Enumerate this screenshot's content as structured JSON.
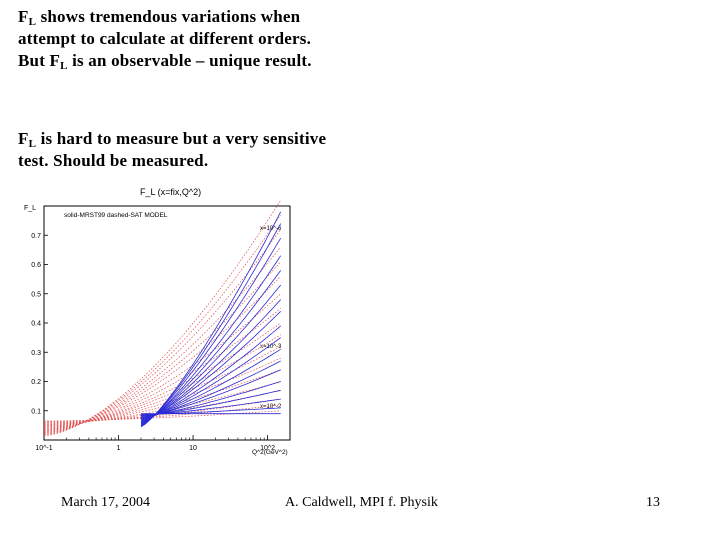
{
  "slide": {
    "para1": {
      "a_main": "F",
      "a_sub": "L",
      "a_rest": " shows tremendous variations when attempt to calculate at different orders.  But F",
      "b_sub": "L",
      "b_rest": " is an observable – unique result."
    },
    "para2": {
      "main": "F",
      "sub": "L",
      "rest": " is hard to measure but a very sensitive test.  Should be measured."
    }
  },
  "figure": {
    "title": "F_L (x=fix,Q^2)",
    "legend_text": "solid-MRST99   dashed-SAT MODEL",
    "ylabel": "F_L",
    "xlabel": "Q^2(GeV^2)",
    "annotations": [
      "x=10^-6",
      "x=10^-3",
      "x=10^-2"
    ],
    "colors": {
      "solid": "#2b2bd6",
      "dashed": "#e05050",
      "frame": "#000000"
    }
  },
  "chart_data": {
    "type": "line",
    "xscale": "log",
    "xlim": [
      0.1,
      200
    ],
    "ylim": [
      0,
      0.8
    ],
    "x_ticks": [
      "10^-1",
      "1",
      "10",
      "10^2"
    ],
    "y_ticks": [
      "0.1",
      "0.2",
      "0.3",
      "0.4",
      "0.5",
      "0.6",
      "0.7"
    ],
    "solid_x_range": [
      2,
      150
    ],
    "dashed_x_range": [
      0.1,
      150
    ],
    "solid_model_endpoints_at_150": [
      0.78,
      0.74,
      0.69,
      0.63,
      0.58,
      0.53,
      0.48,
      0.44,
      0.39,
      0.35,
      0.31,
      0.27,
      0.24,
      0.2,
      0.17,
      0.14,
      0.11,
      0.09
    ],
    "dashed_model_endpoints_at_150": [
      0.82,
      0.77,
      0.72,
      0.66,
      0.61,
      0.56,
      0.5,
      0.45,
      0.4,
      0.36,
      0.32,
      0.28,
      0.24,
      0.2,
      0.17,
      0.14,
      0.12,
      0.1
    ]
  },
  "footer": {
    "date": "March 17, 2004",
    "author": "A. Caldwell, MPI f. Physik",
    "page": "13"
  }
}
